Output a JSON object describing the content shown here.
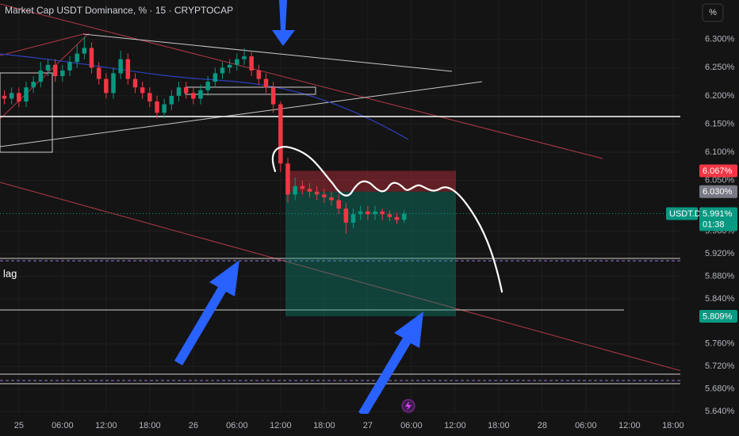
{
  "chart_data": {
    "type": "candlestick",
    "title": "Market Cap USDT Dominance, % · 15 · CRYPTOCAP",
    "unit_button": "%",
    "annotation": "lag",
    "x": [
      -2,
      -1,
      0,
      1,
      2,
      3,
      4,
      5,
      6,
      7,
      8,
      9,
      10,
      11,
      12,
      13,
      14,
      15,
      16,
      17,
      18,
      19,
      20,
      21,
      22,
      23,
      24,
      25,
      26,
      27,
      28,
      29,
      30,
      31,
      32,
      33,
      34,
      35,
      36,
      37,
      38,
      39,
      40,
      41,
      42,
      43,
      44,
      45,
      46,
      47,
      48,
      49,
      50,
      51,
      52,
      53
    ],
    "open": [
      6.2,
      6.195,
      6.205,
      6.19,
      6.215,
      6.225,
      6.245,
      6.255,
      6.235,
      6.245,
      6.26,
      6.275,
      6.285,
      6.25,
      6.23,
      6.205,
      6.24,
      6.265,
      6.23,
      6.215,
      6.205,
      6.19,
      6.17,
      6.185,
      6.2,
      6.215,
      6.205,
      6.195,
      6.21,
      6.225,
      6.24,
      6.25,
      6.255,
      6.265,
      6.27,
      6.245,
      6.23,
      6.215,
      6.185,
      6.08,
      6.025,
      6.04,
      6.035,
      6.03,
      6.025,
      6.02,
      6.015,
      6.0,
      5.975,
      5.99,
      5.995,
      5.99,
      5.995,
      5.99,
      5.985,
      5.98
    ],
    "high": [
      6.21,
      6.215,
      6.215,
      6.225,
      6.235,
      6.26,
      6.265,
      6.265,
      6.255,
      6.27,
      6.29,
      6.305,
      6.295,
      6.26,
      6.24,
      6.25,
      6.28,
      6.275,
      6.24,
      6.225,
      6.215,
      6.2,
      6.195,
      6.21,
      6.225,
      6.225,
      6.215,
      6.22,
      6.235,
      6.25,
      6.26,
      6.265,
      6.275,
      6.285,
      6.28,
      6.255,
      6.24,
      6.225,
      6.19,
      6.09,
      6.055,
      6.05,
      6.045,
      6.04,
      6.035,
      6.03,
      6.025,
      6.01,
      6.0,
      6.005,
      6.005,
      6.005,
      6.0,
      5.997,
      5.993,
      5.997
    ],
    "low": [
      6.185,
      6.185,
      6.18,
      6.18,
      6.205,
      6.215,
      6.235,
      6.225,
      6.225,
      6.235,
      6.25,
      6.265,
      6.24,
      6.22,
      6.195,
      6.195,
      6.23,
      6.22,
      6.205,
      6.195,
      6.18,
      6.16,
      6.16,
      6.175,
      6.19,
      6.195,
      6.185,
      6.185,
      6.2,
      6.215,
      6.23,
      6.24,
      6.245,
      6.255,
      6.235,
      6.22,
      6.205,
      6.17,
      6.065,
      6.01,
      6.015,
      6.025,
      6.02,
      6.015,
      6.01,
      6.005,
      5.99,
      5.955,
      5.965,
      5.98,
      5.98,
      5.98,
      5.98,
      5.978,
      5.972,
      5.975
    ],
    "close": [
      6.195,
      6.205,
      6.19,
      6.215,
      6.225,
      6.245,
      6.255,
      6.235,
      6.245,
      6.26,
      6.275,
      6.285,
      6.25,
      6.23,
      6.205,
      6.24,
      6.265,
      6.23,
      6.215,
      6.205,
      6.19,
      6.17,
      6.185,
      6.2,
      6.215,
      6.205,
      6.195,
      6.21,
      6.225,
      6.24,
      6.25,
      6.255,
      6.265,
      6.27,
      6.245,
      6.23,
      6.215,
      6.185,
      6.08,
      6.025,
      6.04,
      6.035,
      6.03,
      6.025,
      6.02,
      6.015,
      6.0,
      5.975,
      5.99,
      5.995,
      5.99,
      5.995,
      5.99,
      5.985,
      5.98,
      5.991
    ],
    "up_color": "#089981",
    "down_color": "#f23645",
    "xlim": [
      -2.6,
      91
    ],
    "xticks": [
      {
        "value": 0,
        "label": "25"
      },
      {
        "value": 6,
        "label": "06:00"
      },
      {
        "value": 12,
        "label": "12:00"
      },
      {
        "value": 18,
        "label": "18:00"
      },
      {
        "value": 24,
        "label": "26"
      },
      {
        "value": 30,
        "label": "06:00"
      },
      {
        "value": 36,
        "label": "12:00"
      },
      {
        "value": 42,
        "label": "18:00"
      },
      {
        "value": 48,
        "label": "27"
      },
      {
        "value": 54,
        "label": "06:00"
      },
      {
        "value": 60,
        "label": "12:00"
      },
      {
        "value": 66,
        "label": "18:00"
      },
      {
        "value": 72,
        "label": "28"
      },
      {
        "value": 78,
        "label": "06:00"
      },
      {
        "value": 84,
        "label": "12:00"
      },
      {
        "value": 90,
        "label": "18:00"
      }
    ],
    "ylim": [
      5.636,
      6.37
    ],
    "yticks": [
      {
        "value": 6.3,
        "label": "6.300%"
      },
      {
        "value": 6.25,
        "label": "6.250%"
      },
      {
        "value": 6.2,
        "label": "6.200%"
      },
      {
        "value": 6.15,
        "label": "6.150%"
      },
      {
        "value": 6.1,
        "label": "6.100%"
      },
      {
        "value": 6.05,
        "label": "6.050%"
      },
      {
        "value": 5.96,
        "label": "5.960%"
      },
      {
        "value": 5.92,
        "label": "5.920%"
      },
      {
        "value": 5.88,
        "label": "5.880%"
      },
      {
        "value": 5.84,
        "label": "5.840%"
      },
      {
        "value": 5.76,
        "label": "5.760%"
      },
      {
        "value": 5.72,
        "label": "5.720%"
      },
      {
        "value": 5.68,
        "label": "5.680%"
      },
      {
        "value": 5.64,
        "label": "5.640%"
      }
    ],
    "grid": true,
    "price_labels": [
      {
        "value": 6.067,
        "label": "6.067%",
        "color": "#f23645"
      },
      {
        "value": 6.03,
        "label": "6.030%",
        "color": "#787b86"
      },
      {
        "value": 5.809,
        "label": "5.809%",
        "color": "#089981"
      }
    ],
    "last_price": {
      "name": "USDT.D",
      "value": 5.991,
      "label": "5.991%",
      "countdown": "01:38",
      "color": "#089981"
    }
  }
}
